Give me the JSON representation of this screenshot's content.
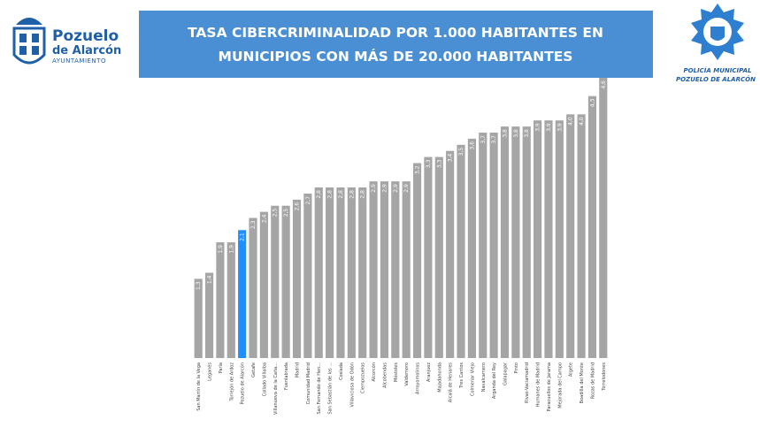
{
  "logos": {
    "left_name": "Pozuelo",
    "left_name2": "de Alarcón",
    "left_sub": "AYUNTAMIENTO",
    "right_line1": "POLICÍA MUNICIPAL",
    "right_line2": "POZUELO DE ALARCÓN"
  },
  "chart_data": {
    "type": "bar",
    "title_line1": "TASA CIBERCRIMINALIDAD POR 1.000 HABITANTES EN",
    "title_line2": "MUNICIPIOS CON MÁS DE 20.000 HABITANTES",
    "categories": [
      "San Martín de la Vega",
      "Leganés",
      "Parla",
      "Torrejón de Ardoz",
      "Pozuelo de Alarcón",
      "Getafe",
      "Collado Villalba",
      "Villanueva de la Caña...",
      "Fuenlabrada",
      "Madrid",
      "Comunidad Madrid",
      "San Fernando de Hen...",
      "San Sebastián de los ...",
      "Coslada",
      "Villaviciosa de Odón",
      "Ciempozuelos",
      "Alcorcón",
      "Alcobendas",
      "Móstoles",
      "Valdemoro",
      "Arroyomolinos",
      "Aranjuez",
      "Majadahonda",
      "Alcalá de Henares",
      "Tres Cantos",
      "Colmenar Viejo",
      "Navalcarnero",
      "Arganda del Rey",
      "Galapagar",
      "Pinto",
      "Rivas-Vaciamadrid",
      "Humanes de Madrid",
      "Paracuellos de Jarama",
      "Mejorada del Campo",
      "Algete",
      "Boadilla del Monte",
      "Rozas de Madrid",
      "Torrelodones"
    ],
    "values": [
      1.3,
      1.4,
      1.9,
      1.9,
      2.1,
      2.3,
      2.4,
      2.5,
      2.5,
      2.6,
      2.7,
      2.8,
      2.8,
      2.8,
      2.8,
      2.8,
      2.9,
      2.9,
      2.9,
      2.9,
      3.2,
      3.3,
      3.3,
      3.4,
      3.5,
      3.6,
      3.7,
      3.7,
      3.8,
      3.8,
      3.8,
      3.9,
      3.9,
      3.9,
      4.0,
      4.0,
      4.3,
      4.6
    ],
    "value_labels": [
      "1,3",
      "1,4",
      "1,9",
      "1,9",
      "2,1",
      "2,3",
      "2,4",
      "2,5",
      "2,5",
      "2,6",
      "2,7",
      "2,8",
      "2,8",
      "2,8",
      "2,8",
      "2,8",
      "2,9",
      "2,9",
      "2,9",
      "2,9",
      "3,2",
      "3,3",
      "3,3",
      "3,4",
      "3,5",
      "3,6",
      "3,7",
      "3,7",
      "3,8",
      "3,8",
      "3,8",
      "3,9",
      "3,9",
      "3,9",
      "4,0",
      "4,0",
      "4,3",
      "4,6"
    ],
    "colors": [
      "#a5a5a5",
      "#a5a5a5",
      "#a5a5a5",
      "#a5a5a5",
      "#1e8fff",
      "#a5a5a5",
      "#a5a5a5",
      "#a5a5a5",
      "#a5a5a5",
      "#a5a5a5",
      "#a5a5a5",
      "#a5a5a5",
      "#a5a5a5",
      "#a5a5a5",
      "#a5a5a5",
      "#a5a5a5",
      "#a5a5a5",
      "#a5a5a5",
      "#a5a5a5",
      "#a5a5a5",
      "#a5a5a5",
      "#a5a5a5",
      "#a5a5a5",
      "#a5a5a5",
      "#a5a5a5",
      "#a5a5a5",
      "#a5a5a5",
      "#a5a5a5",
      "#a5a5a5",
      "#a5a5a5",
      "#a5a5a5",
      "#a5a5a5",
      "#a5a5a5",
      "#a5a5a5",
      "#a5a5a5",
      "#a5a5a5",
      "#a5a5a5",
      "#a5a5a5"
    ]
  }
}
